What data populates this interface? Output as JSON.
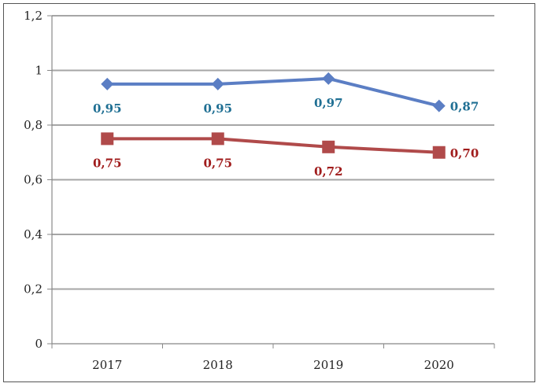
{
  "chart_data": {
    "type": "line",
    "title": "",
    "xlabel": "",
    "ylabel": "",
    "categories": [
      "2017",
      "2018",
      "2019",
      "2020"
    ],
    "ylim": [
      0,
      1.2
    ],
    "yticks": [
      0,
      0.2,
      0.4,
      0.6,
      0.8,
      1,
      1.2
    ],
    "ytick_labels": [
      "0",
      "0,2",
      "0,4",
      "0,6",
      "0,8",
      "1",
      "1,2"
    ],
    "grid": "horizontal",
    "legend": "none",
    "series": [
      {
        "values": [
          0.95,
          0.95,
          0.97,
          0.87
        ],
        "data_labels": [
          "0,95",
          "0,95",
          "0,97",
          "0,87"
        ],
        "marker": "diamond",
        "line_color": "#5b7ec4",
        "label_color": "#1f6f93"
      },
      {
        "values": [
          0.75,
          0.75,
          0.72,
          0.7
        ],
        "data_labels": [
          "0,75",
          "0,75",
          "0,72",
          "0,70"
        ],
        "marker": "square",
        "line_color": "#b04a4a",
        "label_color": "#a01c1c"
      }
    ]
  }
}
